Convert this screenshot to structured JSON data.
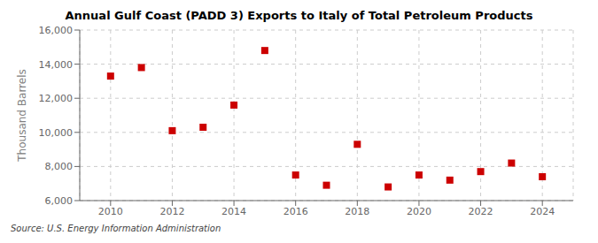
{
  "chart_data": {
    "type": "scatter",
    "title": "Annual Gulf Coast (PADD 3) Exports to Italy of Total Petroleum Products",
    "ylabel": "Thousand Barrels",
    "annotations": [
      "Source: U.S. Energy Information Administration"
    ],
    "x": [
      2010,
      2011,
      2012,
      2013,
      2014,
      2015,
      2016,
      2017,
      2018,
      2019,
      2020,
      2021,
      2022,
      2023,
      2024
    ],
    "values": [
      13300,
      13800,
      10100,
      10300,
      11600,
      14800,
      7500,
      6900,
      9300,
      6800,
      7500,
      7200,
      7700,
      8200,
      7400
    ],
    "color": "#cc0000",
    "marker": "square",
    "xlim": [
      2009,
      2025
    ],
    "xticks": [
      2010,
      2012,
      2014,
      2016,
      2018,
      2020,
      2022,
      2024
    ],
    "ylim": [
      6000,
      16000
    ],
    "yticks": [
      {
        "value": 6000,
        "label": "6,000"
      },
      {
        "value": 8000,
        "label": "8,000"
      },
      {
        "value": 10000,
        "label": "10,000"
      },
      {
        "value": 12000,
        "label": "12,000"
      },
      {
        "value": 14000,
        "label": "14,000"
      },
      {
        "value": 16000,
        "label": "16,000"
      }
    ],
    "grid": true
  }
}
